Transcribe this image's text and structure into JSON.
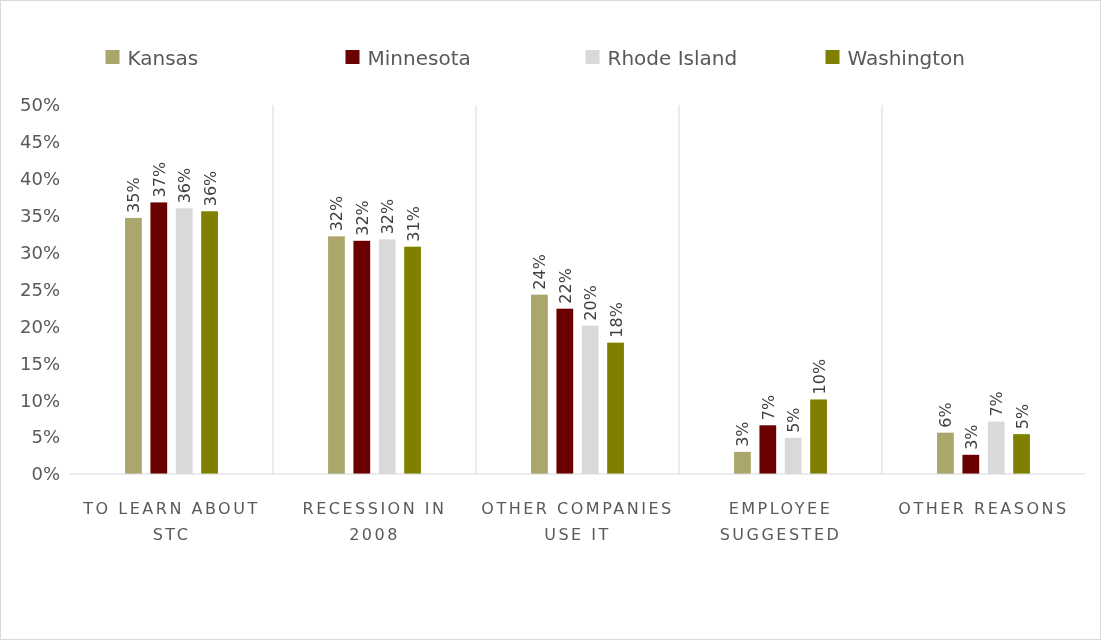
{
  "chart_data": {
    "type": "bar",
    "categories": [
      "TO LEARN ABOUT STC",
      "RECESSION IN 2008",
      "OTHER COMPANIES USE IT",
      "EMPLOYEE SUGGESTED",
      "OTHER REASONS"
    ],
    "series": [
      {
        "name": "Kansas",
        "color": "#aba66b",
        "values": [
          34.7,
          32.2,
          24.3,
          3.0,
          5.6
        ],
        "value_labels": [
          "35%",
          "32%",
          "24%",
          "3%",
          "6%"
        ]
      },
      {
        "name": "Minnesota",
        "color": "#6b0000",
        "values": [
          36.8,
          31.6,
          22.4,
          6.6,
          2.6
        ],
        "value_labels": [
          "37%",
          "32%",
          "22%",
          "7%",
          "3%"
        ]
      },
      {
        "name": "Rhode Island",
        "color": "#d9d9d9",
        "values": [
          36.0,
          31.8,
          20.1,
          4.9,
          7.1
        ],
        "value_labels": [
          "36%",
          "32%",
          "20%",
          "5%",
          "7%"
        ]
      },
      {
        "name": "Washington",
        "color": "#808000",
        "values": [
          35.6,
          30.8,
          17.8,
          10.1,
          5.4
        ],
        "value_labels": [
          "36%",
          "31%",
          "18%",
          "10%",
          "5%"
        ]
      }
    ],
    "ylim": [
      0,
      50
    ],
    "yticks": [
      {
        "value": 0,
        "label": "0%"
      },
      {
        "value": 5,
        "label": "5%"
      },
      {
        "value": 10,
        "label": "10%"
      },
      {
        "value": 15,
        "label": "15%"
      },
      {
        "value": 20,
        "label": "20%"
      },
      {
        "value": 25,
        "label": "25%"
      },
      {
        "value": 30,
        "label": "30%"
      },
      {
        "value": 35,
        "label": "35%"
      },
      {
        "value": 40,
        "label": "40%"
      },
      {
        "value": 45,
        "label": "45%"
      },
      {
        "value": 50,
        "label": "50%"
      }
    ],
    "grid": "x",
    "legend": "top"
  }
}
